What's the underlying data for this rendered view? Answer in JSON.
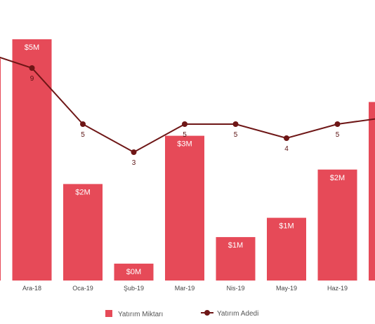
{
  "colors": {
    "bar": "#e64a58",
    "line": "#6e1616",
    "count_label": "#5a1212",
    "axis_text": "#444444",
    "legend_text": "#555555"
  },
  "legend": {
    "bar_series": "Yatırım Miktarı",
    "line_series": "Yatırım Adedi"
  },
  "chart_data": {
    "type": "bar",
    "categories": [
      "",
      "Ara-18",
      "Oca-19",
      "Şub-19",
      "Mar-19",
      "Nis-19",
      "May-19",
      "Haz-19",
      ""
    ],
    "series": [
      {
        "name": "Yatırım Miktarı",
        "type": "bar",
        "values": [
          4.6,
          5.0,
          2.0,
          0.35,
          3.0,
          0.9,
          1.3,
          2.3,
          3.7
        ],
        "data_labels": [
          "",
          "$5M",
          "$2M",
          "$0M",
          "$3M",
          "$1M",
          "$1M",
          "$2M",
          ""
        ]
      },
      {
        "name": "Yatırım Adedi",
        "type": "line",
        "values": [
          10.2,
          9,
          5,
          3,
          5,
          5,
          4,
          5,
          5.5
        ],
        "data_labels": [
          "",
          "9",
          "5",
          "3",
          "5",
          "5",
          "4",
          "5",
          ""
        ]
      }
    ],
    "legend_position": "bottom",
    "grid": false
  }
}
